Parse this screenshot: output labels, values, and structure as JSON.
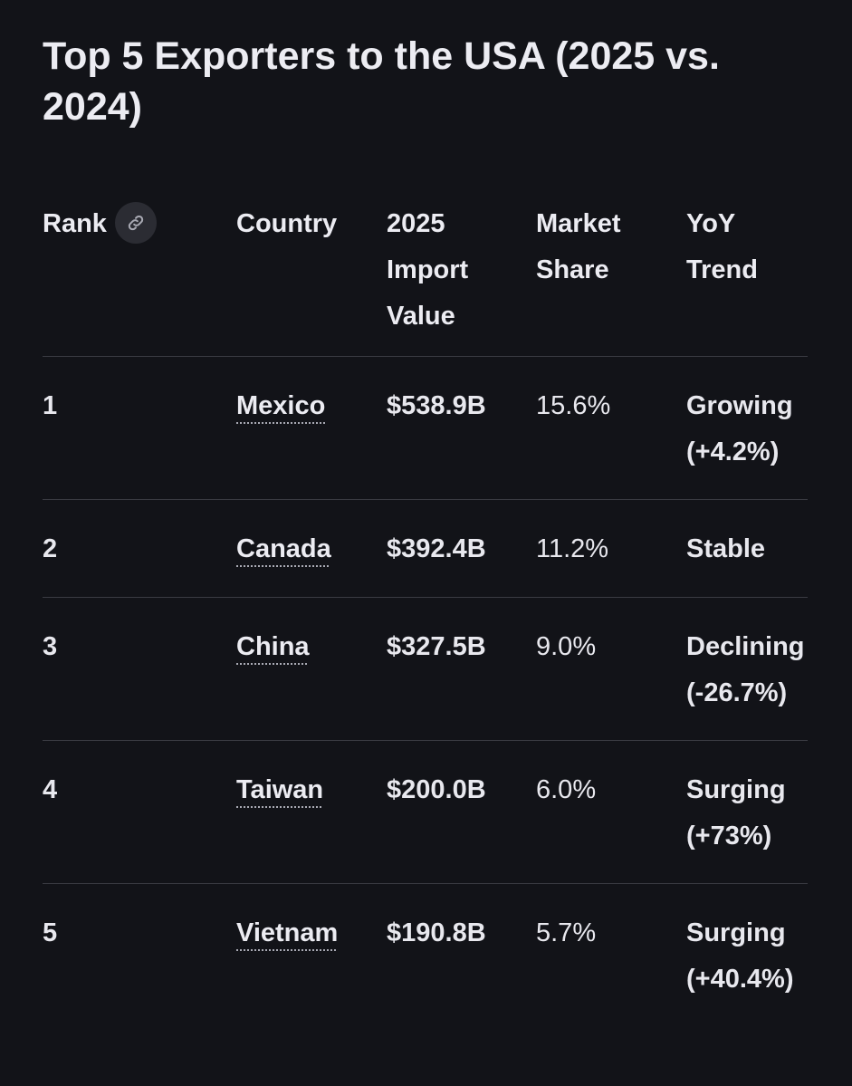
{
  "title": "Top 5 Exporters to the USA (2025 vs. 2024)",
  "table": {
    "headers": {
      "rank": "Rank",
      "rank_icon": "link-icon",
      "country": "Country",
      "value_line1": "2025",
      "value_line2": "Import",
      "value_line3": "Value",
      "share_line1": "Market",
      "share_line2": "Share",
      "trend_line1": "YoY",
      "trend_line2": "Trend"
    },
    "rows": [
      {
        "rank": "1",
        "country": "Mexico",
        "value": "$538.9B",
        "share": "15.6%",
        "trend_line1": "Growing",
        "trend_line2": "(+4.2%)"
      },
      {
        "rank": "2",
        "country": "Canada",
        "value": "$392.4B",
        "share": "11.2%",
        "trend_line1": "Stable",
        "trend_line2": ""
      },
      {
        "rank": "3",
        "country": "China",
        "value": "$327.5B",
        "share": "9.0%",
        "trend_line1": "Declining",
        "trend_line2": "(-26.7%)"
      },
      {
        "rank": "4",
        "country": "Taiwan",
        "value": "$200.0B",
        "share": "6.0%",
        "trend_line1": "Surging",
        "trend_line2": "(+73%)"
      },
      {
        "rank": "5",
        "country": "Vietnam",
        "value": "$190.8B",
        "share": "5.7%",
        "trend_line1": "Surging",
        "trend_line2": "(+40.4%)"
      }
    ]
  },
  "colors": {
    "background": "#121318",
    "text": "#e8e8ee",
    "divider": "#3a3b42",
    "icon_button_bg": "#2b2c33"
  }
}
